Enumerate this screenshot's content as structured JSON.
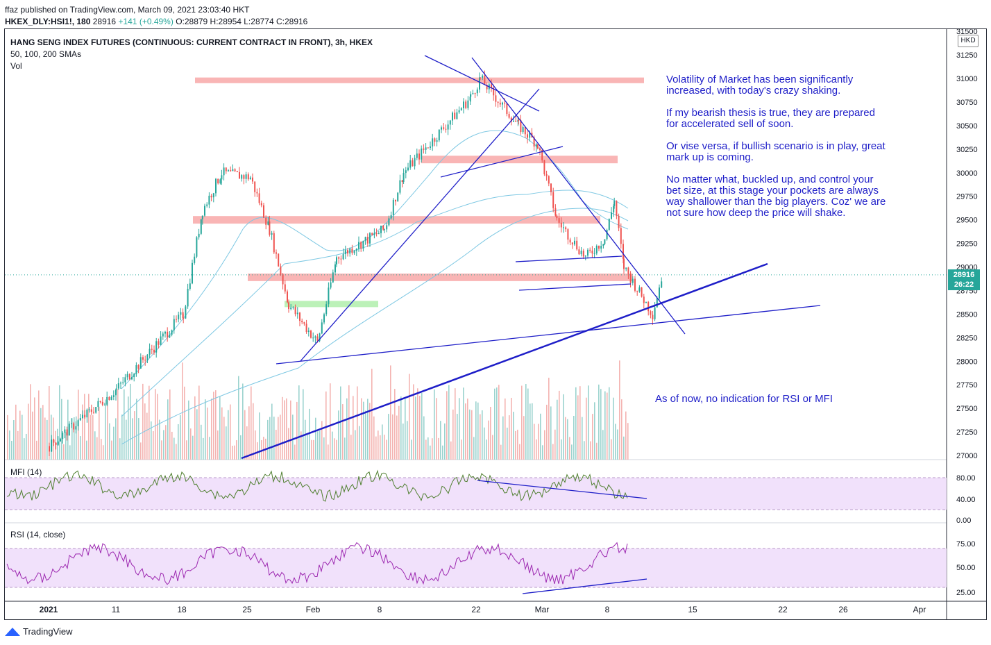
{
  "header": {
    "published": "ffaz published on TradingView.com, March 09, 2021 23:03:40 HKT",
    "symbol": "HKEX_DLY:HSI1!, 180",
    "last": "28916",
    "change": "+141 (+0.49%)",
    "ohlc": "O:28879 H:28954 L:28774 C:28916"
  },
  "legend": {
    "title": "HANG SENG INDEX FUTURES (CONTINUOUS: CURRENT CONTRACT IN FRONT), 3h, HKEX",
    "smas": "50, 100, 200 SMAs",
    "vol": "Vol"
  },
  "price_axis": {
    "currency": "HKD",
    "last_price": "28916",
    "countdown": "26:22",
    "labels": [
      "31500",
      "31250",
      "31000",
      "30750",
      "30500",
      "30250",
      "30000",
      "29750",
      "29500",
      "29250",
      "29000",
      "28750",
      "28500",
      "28250",
      "28000",
      "27750",
      "27500",
      "27250",
      "27000"
    ]
  },
  "mfi": {
    "label": "MFI (14)",
    "labels": [
      "80.00",
      "40.00",
      "0.00"
    ]
  },
  "rsi": {
    "label": "RSI (14, close)",
    "labels": [
      "75.00",
      "50.00",
      "25.00"
    ]
  },
  "time_axis": [
    "2021",
    "11",
    "18",
    "25",
    "Feb",
    "8",
    "22",
    "Mar",
    "8",
    "15",
    "22",
    "26",
    "Apr"
  ],
  "notes": {
    "main": "Volatility of Market has been significantly\nincreased, with today's crazy shaking.\n\nIf my bearish thesis is true, they are prepared\nfor accelerated sell of soon.\n\nOr vise versa, if bullish scenario is in play, great\nmark up is coming.\n\nNo matter what, buckled up, and control your\nbet size, at this stage your pockets are always\nway shallower than the big players. Coz' we are\nnot sure how deep the price will shake.",
    "indicator": "As of now, no indication for RSI or MFI"
  },
  "brand": "TradingView",
  "colors": {
    "up": "#26a69a",
    "down": "#ef5350",
    "trendline": "#1e1ec8",
    "zone": "#f8a3a3",
    "support_zone": "#b5f0b0",
    "sma": "#7ec8e3",
    "indicator_band": "#f1e1fb",
    "mfi_line": "#4f7f2f",
    "rsi_line": "#9c27b0"
  },
  "chart_data": {
    "type": "candlestick",
    "symbol": "HSI1!",
    "interval": "3h",
    "ylim": [
      27000,
      31500
    ],
    "resistance_zones": [
      {
        "from": 30950,
        "to": 31010
      },
      {
        "from": 30100,
        "to": 30180
      },
      {
        "from": 29460,
        "to": 29540
      },
      {
        "from": 28850,
        "to": 28930
      }
    ],
    "support_zones": [
      {
        "from": 28580,
        "to": 28640
      }
    ],
    "price_path_approx": [
      {
        "date": "2021-01-04",
        "close": 27100
      },
      {
        "date": "2021-01-11",
        "close": 27700
      },
      {
        "date": "2021-01-18",
        "close": 28500
      },
      {
        "date": "2021-01-20",
        "close": 29600
      },
      {
        "date": "2021-01-22",
        "close": 30000
      },
      {
        "date": "2021-01-25",
        "close": 29950
      },
      {
        "date": "2021-01-27",
        "close": 29400
      },
      {
        "date": "2021-01-29",
        "close": 28600
      },
      {
        "date": "2021-02-01",
        "close": 28200
      },
      {
        "date": "2021-02-03",
        "close": 29100
      },
      {
        "date": "2021-02-08",
        "close": 29400
      },
      {
        "date": "2021-02-10",
        "close": 30000
      },
      {
        "date": "2021-02-17",
        "close": 30800
      },
      {
        "date": "2021-02-18",
        "close": 31000
      },
      {
        "date": "2021-02-22",
        "close": 30500
      },
      {
        "date": "2021-02-24",
        "close": 30300
      },
      {
        "date": "2021-02-26",
        "close": 29500
      },
      {
        "date": "2021-03-01",
        "close": 29100
      },
      {
        "date": "2021-03-03",
        "close": 29300
      },
      {
        "date": "2021-03-04",
        "close": 29700
      },
      {
        "date": "2021-03-05",
        "close": 29000
      },
      {
        "date": "2021-03-08",
        "close": 28500
      },
      {
        "date": "2021-03-09",
        "close": 28916
      }
    ],
    "mfi_range": [
      0,
      100
    ],
    "rsi_range": [
      0,
      100
    ]
  }
}
